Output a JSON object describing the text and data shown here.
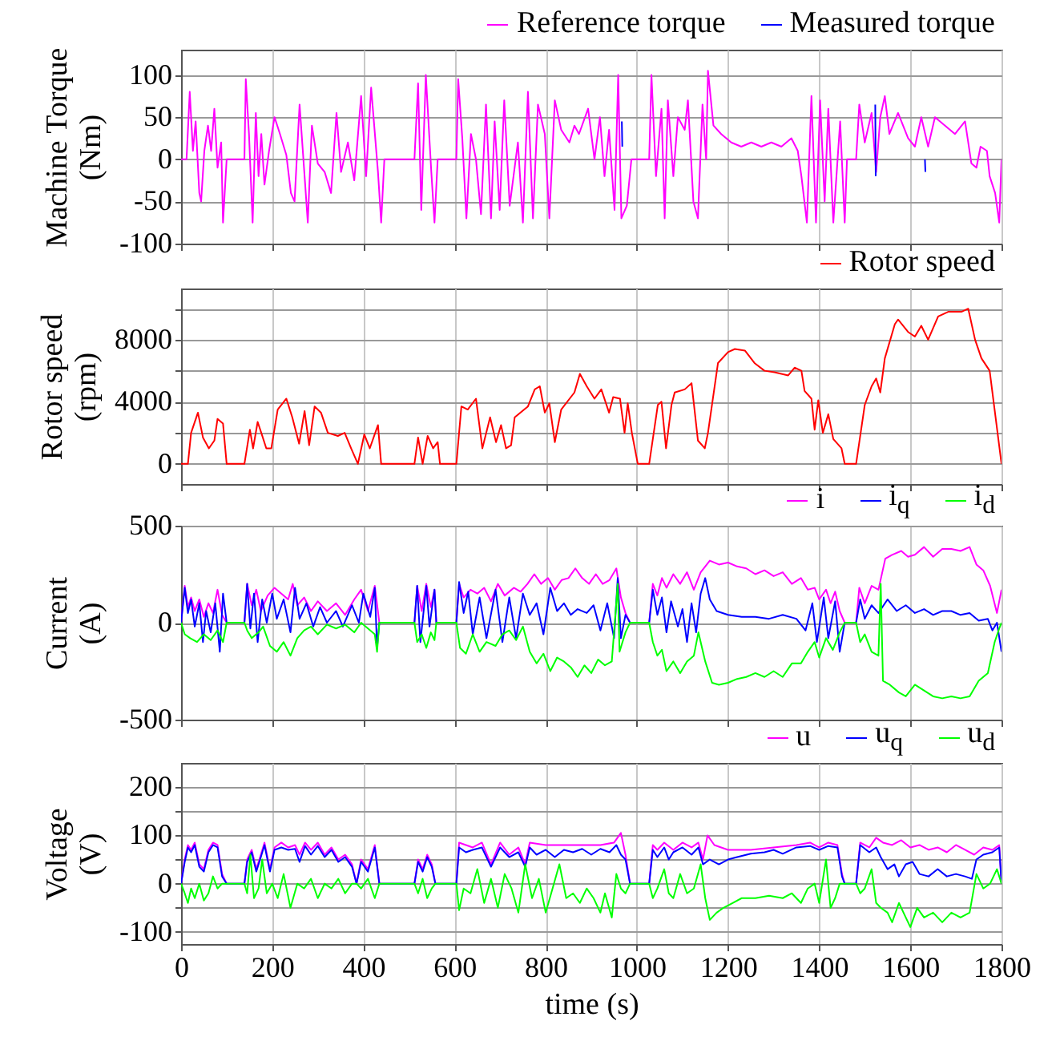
{
  "chart_data": [
    {
      "type": "line",
      "ylabel": "Machine Torque (Nm)",
      "xlim": [
        0,
        1800
      ],
      "xticks": [
        0,
        200,
        400,
        600,
        800,
        1000,
        1200,
        1400,
        1600,
        1800
      ],
      "ylim": [
        -100,
        130
      ],
      "yticks": [
        -100,
        -50,
        0,
        50,
        100
      ],
      "grid": true,
      "legend": "top right",
      "tick_labels": "y",
      "series": [
        {
          "name": "Reference torque",
          "color": "#ff00ff",
          "x": [
            0,
            12,
            19,
            26,
            32,
            40,
            44,
            51,
            59,
            66,
            73,
            80,
            88,
            92,
            100,
            139,
            142,
            149,
            157,
            164,
            170,
            176,
            183,
            193,
            205,
            217,
            231,
            241,
            249,
            260,
            271,
            278,
            287,
            300,
            315,
            329,
            341,
            351,
            366,
            380,
            395,
            406,
            417,
            432,
            439,
            446,
            512,
            520,
            527,
            537,
            549,
            556,
            563,
            604,
            608,
            617,
            626,
            636,
            647,
            658,
            669,
            680,
            688,
            699,
            709,
            721,
            739,
            750,
            761,
            772,
            783,
            798,
            808,
            820,
            834,
            852,
            863,
            873,
            893,
            907,
            919,
            929,
            939,
            951,
            959,
            966,
            978,
            988,
            1027,
            1032,
            1042,
            1054,
            1061,
            1068,
            1080,
            1090,
            1105,
            1112,
            1124,
            1134,
            1144,
            1152,
            1156,
            1168,
            1185,
            1207,
            1229,
            1251,
            1273,
            1295,
            1317,
            1339,
            1353,
            1361,
            1373,
            1383,
            1393,
            1402,
            1412,
            1420,
            1431,
            1446,
            1456,
            1461,
            1481,
            1488,
            1500,
            1515,
            1525,
            1534,
            1544,
            1554,
            1573,
            1595,
            1610,
            1624,
            1639,
            1654,
            1676,
            1698,
            1720,
            1734,
            1745,
            1754,
            1768,
            1774,
            1786,
            1795,
            1800
          ],
          "values": [
            0,
            0,
            80,
            10,
            45,
            -40,
            -50,
            10,
            40,
            10,
            60,
            -10,
            20,
            -75,
            0,
            0,
            95,
            30,
            -75,
            55,
            -20,
            30,
            -30,
            10,
            50,
            30,
            5,
            -40,
            -50,
            65,
            -20,
            -75,
            40,
            -5,
            -15,
            -40,
            55,
            -15,
            20,
            -25,
            75,
            -20,
            85,
            -15,
            -75,
            0,
            0,
            90,
            -60,
            100,
            -15,
            -75,
            0,
            0,
            95,
            25,
            -70,
            30,
            0,
            -65,
            65,
            -70,
            45,
            -60,
            70,
            -55,
            20,
            -75,
            80,
            -70,
            65,
            30,
            -70,
            70,
            35,
            20,
            40,
            30,
            60,
            0,
            50,
            -20,
            35,
            -60,
            100,
            -70,
            -55,
            0,
            0,
            100,
            -20,
            60,
            -70,
            70,
            -20,
            50,
            35,
            70,
            -50,
            -70,
            65,
            0,
            105,
            40,
            30,
            20,
            15,
            20,
            15,
            20,
            15,
            25,
            10,
            -20,
            -75,
            75,
            -75,
            70,
            -50,
            60,
            -75,
            45,
            -75,
            0,
            0,
            65,
            20,
            55,
            -15,
            50,
            75,
            30,
            55,
            25,
            15,
            50,
            15,
            50,
            40,
            30,
            45,
            -5,
            -10,
            15,
            10,
            -20,
            -40,
            -75,
            0
          ]
        },
        {
          "name": "Measured torque",
          "color": "#0000ff",
          "x": [
            967,
            968,
            1000,
            1523,
            1524,
            1600,
            1632,
            1633
          ],
          "values": [
            45,
            15,
            null,
            65,
            -20,
            null,
            0,
            -15
          ]
        }
      ]
    },
    {
      "type": "line",
      "ylabel": "Rotor speed (rpm)",
      "xlim": [
        0,
        1800
      ],
      "xticks": [
        0,
        200,
        400,
        600,
        800,
        1000,
        1200,
        1400,
        1600,
        1800
      ],
      "ylim": [
        -1300,
        11300
      ],
      "yticks": [
        0,
        {
          "value": 2000,
          "label": null
        },
        4000,
        {
          "value": 6000,
          "label": null
        },
        8000,
        {
          "value": 10000,
          "label": null
        }
      ],
      "grid": true,
      "legend": "top right",
      "tick_labels": "y",
      "series": [
        {
          "name": "Rotor speed",
          "color": "#ff0000",
          "x": [
            0,
            15,
            22,
            37,
            48,
            61,
            73,
            80,
            92,
            100,
            139,
            151,
            158,
            168,
            176,
            187,
            198,
            212,
            231,
            244,
            259,
            271,
            281,
            293,
            307,
            322,
            344,
            359,
            373,
            388,
            402,
            414,
            432,
            439,
            512,
            520,
            530,
            541,
            553,
            563,
            568,
            604,
            615,
            629,
            647,
            661,
            678,
            691,
            702,
            713,
            724,
            732,
            761,
            776,
            787,
            798,
            808,
            820,
            834,
            863,
            875,
            890,
            907,
            922,
            939,
            948,
            963,
            973,
            980,
            989,
            1002,
            1027,
            1046,
            1054,
            1064,
            1076,
            1083,
            1105,
            1120,
            1134,
            1149,
            1156,
            1178,
            1200,
            1215,
            1237,
            1258,
            1280,
            1302,
            1332,
            1346,
            1361,
            1368,
            1383,
            1390,
            1398,
            1408,
            1420,
            1431,
            1449,
            1456,
            1481,
            1500,
            1515,
            1525,
            1534,
            1544,
            1566,
            1573,
            1595,
            1610,
            1624,
            1639,
            1661,
            1683,
            1712,
            1727,
            1742,
            1756,
            1774,
            1800
          ],
          "values": [
            0,
            0,
            2000,
            3300,
            1700,
            1000,
            1500,
            2900,
            2600,
            0,
            0,
            2200,
            1000,
            2700,
            2000,
            1000,
            1000,
            3500,
            4200,
            3000,
            1300,
            3400,
            1200,
            3700,
            3300,
            2000,
            1800,
            2000,
            1000,
            0,
            1900,
            1000,
            2500,
            0,
            0,
            1700,
            0,
            1800,
            1000,
            1400,
            0,
            0,
            3700,
            3500,
            4200,
            1000,
            3000,
            1400,
            2500,
            1000,
            1200,
            3000,
            3700,
            4800,
            5000,
            3300,
            3900,
            1400,
            3500,
            4600,
            5800,
            5000,
            4200,
            4800,
            3300,
            4300,
            4200,
            2000,
            3900,
            2000,
            0,
            0,
            3800,
            4000,
            1000,
            3800,
            4600,
            4800,
            5200,
            1500,
            1000,
            2000,
            6500,
            7200,
            7400,
            7300,
            6500,
            6000,
            5900,
            5700,
            6200,
            6000,
            4700,
            4200,
            2200,
            4100,
            2000,
            3200,
            1600,
            1000,
            0,
            0,
            3800,
            5000,
            5500,
            4600,
            6800,
            9000,
            9300,
            8500,
            8200,
            8900,
            8000,
            9500,
            9800,
            9800,
            10000,
            8000,
            6800,
            6000,
            0
          ]
        }
      ]
    },
    {
      "type": "line",
      "ylabel": "Current (A)",
      "xlim": [
        0,
        1800
      ],
      "xticks": [
        0,
        200,
        400,
        600,
        800,
        1000,
        1200,
        1400,
        1600,
        1800
      ],
      "ylim": [
        -500,
        500
      ],
      "yticks": [
        -500,
        0,
        500
      ],
      "grid": true,
      "legend": "top right",
      "tick_labels": "y",
      "series": [
        {
          "name": "i",
          "color": "#ff00ff",
          "x": [
            0,
            8,
            15,
            22,
            30,
            40,
            50,
            60,
            70,
            80,
            90,
            100,
            139,
            145,
            155,
            165,
            175,
            190,
            205,
            220,
            235,
            245,
            255,
            270,
            285,
            300,
            320,
            340,
            360,
            380,
            395,
            410,
            425,
            435,
            512,
            518,
            528,
            538,
            548,
            556,
            560,
            604,
            610,
            620,
            635,
            650,
            665,
            680,
            695,
            710,
            730,
            745,
            760,
            775,
            790,
            805,
            820,
            835,
            850,
            865,
            880,
            895,
            910,
            925,
            940,
            955,
            965,
            975,
            985,
            1027,
            1035,
            1045,
            1055,
            1065,
            1080,
            1095,
            1110,
            1125,
            1140,
            1160,
            1180,
            1200,
            1220,
            1240,
            1260,
            1280,
            1300,
            1320,
            1340,
            1360,
            1375,
            1390,
            1400,
            1415,
            1425,
            1435,
            1445,
            1456,
            1481,
            1488,
            1500,
            1515,
            1530,
            1545,
            1560,
            1580,
            1595,
            1610,
            1630,
            1650,
            1670,
            1690,
            1710,
            1730,
            1745,
            1760,
            1775,
            1790,
            1800
          ],
          "values": [
            0,
            190,
            80,
            130,
            60,
            120,
            30,
            100,
            50,
            170,
            40,
            0,
            0,
            200,
            90,
            170,
            60,
            140,
            180,
            150,
            120,
            200,
            90,
            130,
            60,
            110,
            60,
            100,
            40,
            120,
            170,
            60,
            190,
            0,
            0,
            190,
            60,
            200,
            80,
            170,
            0,
            0,
            200,
            130,
            170,
            150,
            180,
            110,
            200,
            140,
            180,
            160,
            200,
            250,
            200,
            230,
            170,
            220,
            230,
            280,
            230,
            200,
            250,
            200,
            220,
            280,
            130,
            50,
            0,
            0,
            200,
            140,
            230,
            180,
            250,
            200,
            260,
            170,
            260,
            320,
            300,
            310,
            290,
            280,
            250,
            270,
            240,
            260,
            200,
            230,
            170,
            180,
            120,
            170,
            100,
            160,
            60,
            0,
            0,
            180,
            100,
            190,
            170,
            330,
            350,
            370,
            340,
            350,
            390,
            340,
            380,
            380,
            370,
            390,
            300,
            270,
            190,
            50,
            170
          ]
        },
        {
          "name": "i$_{q}$",
          "color": "#0000ff",
          "x": [
            0,
            8,
            15,
            22,
            30,
            40,
            48,
            55,
            65,
            75,
            85,
            92,
            100,
            139,
            145,
            152,
            160,
            168,
            178,
            188,
            200,
            210,
            225,
            240,
            250,
            260,
            275,
            290,
            305,
            320,
            340,
            355,
            375,
            390,
            400,
            415,
            425,
            430,
            435,
            512,
            518,
            525,
            538,
            545,
            556,
            560,
            604,
            610,
            620,
            630,
            640,
            655,
            670,
            690,
            705,
            720,
            735,
            750,
            765,
            780,
            795,
            810,
            825,
            840,
            855,
            870,
            890,
            905,
            920,
            935,
            950,
            958,
            965,
            975,
            985,
            1027,
            1035,
            1045,
            1055,
            1065,
            1075,
            1090,
            1100,
            1110,
            1120,
            1130,
            1140,
            1150,
            1160,
            1175,
            1200,
            1230,
            1260,
            1290,
            1320,
            1350,
            1370,
            1385,
            1395,
            1410,
            1420,
            1435,
            1445,
            1456,
            1481,
            1490,
            1500,
            1515,
            1530,
            1550,
            1570,
            1590,
            1610,
            1630,
            1650,
            1670,
            1690,
            1710,
            1730,
            1750,
            1770,
            1780,
            1790,
            1800
          ],
          "values": [
            0,
            180,
            50,
            120,
            -20,
            100,
            -100,
            60,
            -50,
            100,
            -150,
            150,
            0,
            0,
            200,
            -30,
            150,
            -100,
            120,
            0,
            150,
            20,
            120,
            -50,
            180,
            20,
            100,
            -20,
            80,
            0,
            60,
            -20,
            90,
            0,
            150,
            30,
            180,
            -130,
            0,
            0,
            190,
            -100,
            190,
            -20,
            170,
            0,
            0,
            210,
            50,
            160,
            -60,
            130,
            -80,
            170,
            -100,
            130,
            -80,
            150,
            40,
            100,
            -60,
            180,
            60,
            100,
            40,
            70,
            50,
            90,
            -40,
            100,
            -80,
            230,
            -80,
            40,
            0,
            0,
            170,
            40,
            130,
            -50,
            110,
            -20,
            70,
            -100,
            100,
            -50,
            150,
            230,
            120,
            60,
            40,
            30,
            30,
            20,
            40,
            20,
            -40,
            100,
            -100,
            130,
            -80,
            110,
            -150,
            0,
            0,
            120,
            20,
            90,
            50,
            120,
            60,
            90,
            50,
            70,
            40,
            60,
            60,
            40,
            50,
            10,
            20,
            -40,
            0,
            -150
          ]
        },
        {
          "name": "i$_{d}$",
          "color": "#00ff00",
          "x": [
            0,
            8,
            20,
            35,
            50,
            65,
            80,
            92,
            100,
            139,
            145,
            155,
            170,
            180,
            195,
            210,
            225,
            240,
            255,
            270,
            285,
            300,
            320,
            340,
            360,
            380,
            395,
            410,
            425,
            430,
            435,
            512,
            518,
            528,
            538,
            548,
            556,
            560,
            604,
            612,
            625,
            640,
            655,
            670,
            690,
            705,
            720,
            735,
            750,
            765,
            780,
            795,
            810,
            825,
            840,
            855,
            870,
            885,
            900,
            915,
            930,
            945,
            958,
            962,
            975,
            985,
            1027,
            1035,
            1045,
            1055,
            1065,
            1080,
            1095,
            1110,
            1125,
            1135,
            1150,
            1165,
            1180,
            1200,
            1220,
            1240,
            1260,
            1280,
            1300,
            1320,
            1340,
            1360,
            1375,
            1390,
            1400,
            1415,
            1430,
            1445,
            1456,
            1481,
            1490,
            1500,
            1515,
            1530,
            1535,
            1540,
            1555,
            1575,
            1590,
            1610,
            1630,
            1650,
            1670,
            1690,
            1710,
            1730,
            1750,
            1770,
            1785,
            1795,
            1800
          ],
          "values": [
            0,
            -60,
            -80,
            -100,
            -60,
            -90,
            -40,
            -100,
            0,
            0,
            -40,
            -80,
            -50,
            -20,
            -120,
            -150,
            -100,
            -170,
            -80,
            -40,
            -20,
            -60,
            -10,
            -30,
            -10,
            -50,
            0,
            -30,
            -60,
            -150,
            0,
            0,
            -100,
            -60,
            -130,
            -50,
            -90,
            0,
            0,
            -130,
            -160,
            -60,
            -150,
            -100,
            -120,
            -60,
            -40,
            -90,
            -20,
            -150,
            -210,
            -160,
            -250,
            -180,
            -200,
            -230,
            -280,
            -220,
            -260,
            -190,
            -220,
            -200,
            200,
            -150,
            -50,
            0,
            0,
            -100,
            -170,
            -140,
            -250,
            -200,
            -260,
            -200,
            -170,
            -50,
            -200,
            -310,
            -320,
            -310,
            -290,
            -280,
            -260,
            -280,
            -250,
            -280,
            -210,
            -210,
            -150,
            -100,
            -180,
            -80,
            -140,
            -50,
            0,
            0,
            -100,
            -60,
            -150,
            -170,
            200,
            -300,
            -320,
            -360,
            -380,
            -320,
            -350,
            -380,
            -390,
            -380,
            -390,
            -380,
            -300,
            -260,
            -100,
            -30,
            0
          ]
        }
      ]
    },
    {
      "type": "line",
      "xlabel": "time (s)",
      "ylabel": "Voltage (V)",
      "xlim": [
        0,
        1800
      ],
      "xticks": [
        0,
        200,
        400,
        600,
        800,
        1000,
        1200,
        1400,
        1600,
        1800
      ],
      "ylim": [
        -125,
        250
      ],
      "yticks": [
        -100,
        {
          "value": -50,
          "label": null
        },
        0,
        {
          "value": 50,
          "label": null
        },
        100,
        {
          "value": 150,
          "label": null
        },
        200
      ],
      "grid": true,
      "legend": "top right",
      "series": [
        {
          "name": "u",
          "color": "#ff00ff",
          "x": [
            0,
            8,
            15,
            22,
            30,
            40,
            50,
            60,
            70,
            80,
            90,
            100,
            139,
            145,
            155,
            165,
            175,
            183,
            195,
            205,
            220,
            235,
            250,
            260,
            272,
            285,
            300,
            315,
            330,
            345,
            360,
            375,
            385,
            395,
            410,
            425,
            435,
            512,
            520,
            530,
            540,
            550,
            558,
            604,
            610,
            640,
            660,
            680,
            700,
            720,
            740,
            755,
            765,
            800,
            840,
            880,
            920,
            950,
            965,
            975,
            985,
            1027,
            1035,
            1045,
            1060,
            1080,
            1100,
            1120,
            1135,
            1145,
            1155,
            1170,
            1200,
            1250,
            1300,
            1350,
            1380,
            1400,
            1420,
            1440,
            1450,
            1456,
            1481,
            1490,
            1510,
            1525,
            1540,
            1560,
            1580,
            1600,
            1620,
            1640,
            1660,
            1680,
            1700,
            1720,
            1740,
            1760,
            1780,
            1795,
            1800
          ],
          "values": [
            0,
            50,
            80,
            70,
            85,
            40,
            30,
            70,
            85,
            80,
            20,
            0,
            0,
            50,
            70,
            30,
            60,
            85,
            30,
            75,
            85,
            75,
            80,
            60,
            85,
            70,
            85,
            60,
            75,
            50,
            60,
            40,
            0,
            50,
            30,
            80,
            0,
            0,
            50,
            30,
            60,
            40,
            0,
            0,
            85,
            75,
            85,
            40,
            85,
            60,
            75,
            40,
            85,
            80,
            80,
            80,
            80,
            85,
            105,
            60,
            0,
            0,
            80,
            70,
            85,
            70,
            85,
            75,
            85,
            50,
            100,
            80,
            70,
            70,
            75,
            80,
            85,
            75,
            85,
            80,
            20,
            0,
            0,
            85,
            75,
            95,
            85,
            80,
            90,
            75,
            80,
            70,
            75,
            65,
            80,
            70,
            60,
            75,
            70,
            80,
            0
          ]
        },
        {
          "name": "u$_{q}$",
          "color": "#0000ff",
          "x": [
            0,
            8,
            15,
            22,
            30,
            40,
            50,
            60,
            70,
            80,
            90,
            100,
            139,
            145,
            155,
            165,
            175,
            183,
            195,
            205,
            220,
            235,
            250,
            260,
            272,
            285,
            300,
            315,
            330,
            345,
            360,
            375,
            385,
            395,
            410,
            425,
            435,
            512,
            520,
            530,
            540,
            550,
            558,
            604,
            610,
            625,
            640,
            660,
            680,
            700,
            720,
            740,
            755,
            765,
            780,
            800,
            820,
            840,
            860,
            880,
            900,
            920,
            940,
            955,
            965,
            975,
            985,
            1027,
            1035,
            1045,
            1060,
            1070,
            1080,
            1100,
            1120,
            1135,
            1145,
            1160,
            1180,
            1200,
            1220,
            1250,
            1280,
            1300,
            1320,
            1350,
            1380,
            1400,
            1420,
            1440,
            1450,
            1456,
            1481,
            1490,
            1510,
            1525,
            1535,
            1550,
            1565,
            1575,
            1590,
            1605,
            1620,
            1640,
            1660,
            1680,
            1700,
            1720,
            1735,
            1745,
            1760,
            1780,
            1795,
            1800
          ],
          "values": [
            0,
            45,
            75,
            65,
            80,
            35,
            25,
            65,
            80,
            75,
            15,
            0,
            0,
            45,
            65,
            25,
            55,
            80,
            25,
            70,
            75,
            70,
            72,
            45,
            78,
            60,
            78,
            55,
            70,
            45,
            55,
            35,
            0,
            45,
            25,
            75,
            0,
            0,
            45,
            25,
            55,
            35,
            0,
            0,
            75,
            65,
            70,
            75,
            35,
            75,
            55,
            65,
            35,
            75,
            60,
            70,
            55,
            70,
            65,
            72,
            60,
            72,
            65,
            80,
            60,
            50,
            0,
            0,
            70,
            55,
            75,
            50,
            65,
            75,
            60,
            75,
            40,
            50,
            40,
            50,
            55,
            62,
            65,
            70,
            62,
            75,
            78,
            70,
            78,
            75,
            15,
            0,
            0,
            80,
            65,
            75,
            55,
            30,
            40,
            15,
            40,
            45,
            20,
            15,
            30,
            15,
            20,
            15,
            10,
            50,
            60,
            65,
            75,
            0
          ]
        },
        {
          "name": "u$_{d}$",
          "color": "#00ff00",
          "x": [
            0,
            8,
            15,
            22,
            30,
            40,
            50,
            60,
            70,
            80,
            90,
            100,
            139,
            145,
            152,
            160,
            170,
            178,
            188,
            200,
            212,
            225,
            240,
            255,
            270,
            285,
            300,
            315,
            330,
            345,
            360,
            375,
            385,
            395,
            410,
            425,
            435,
            512,
            520,
            530,
            540,
            550,
            558,
            604,
            610,
            620,
            635,
            650,
            665,
            680,
            695,
            710,
            725,
            740,
            755,
            770,
            785,
            800,
            815,
            830,
            845,
            860,
            875,
            890,
            905,
            920,
            930,
            945,
            955,
            965,
            975,
            985,
            1027,
            1035,
            1045,
            1060,
            1070,
            1080,
            1095,
            1110,
            1125,
            1140,
            1150,
            1160,
            1175,
            1190,
            1210,
            1230,
            1260,
            1290,
            1320,
            1340,
            1360,
            1375,
            1390,
            1400,
            1415,
            1425,
            1435,
            1445,
            1456,
            1481,
            1490,
            1500,
            1515,
            1525,
            1535,
            1550,
            1560,
            1575,
            1590,
            1600,
            1615,
            1630,
            1650,
            1670,
            1690,
            1710,
            1730,
            1745,
            1760,
            1775,
            1790,
            1800
          ],
          "values": [
            0,
            -20,
            -40,
            -10,
            -30,
            0,
            -35,
            -20,
            15,
            -10,
            0,
            0,
            0,
            -20,
            60,
            -30,
            -10,
            50,
            -20,
            0,
            -30,
            20,
            -50,
            0,
            -10,
            10,
            -30,
            0,
            -10,
            10,
            -20,
            0,
            0,
            -10,
            10,
            -30,
            0,
            0,
            -20,
            10,
            -30,
            -10,
            0,
            0,
            -55,
            -10,
            -20,
            30,
            -40,
            10,
            -50,
            20,
            -10,
            -60,
            40,
            -30,
            10,
            -60,
            -10,
            40,
            -30,
            -20,
            -40,
            -10,
            -30,
            -60,
            -20,
            -70,
            20,
            -10,
            -20,
            0,
            0,
            -30,
            -10,
            30,
            -20,
            -30,
            20,
            -20,
            -10,
            40,
            -30,
            -75,
            -60,
            -50,
            -40,
            -30,
            -30,
            -25,
            -30,
            -20,
            -40,
            -10,
            0,
            -40,
            50,
            -50,
            -30,
            0,
            0,
            0,
            -20,
            -10,
            30,
            -40,
            -50,
            -60,
            -80,
            -40,
            -70,
            -90,
            -50,
            -70,
            -60,
            -80,
            -60,
            -70,
            -60,
            20,
            -10,
            0,
            30,
            0
          ]
        }
      ]
    }
  ]
}
